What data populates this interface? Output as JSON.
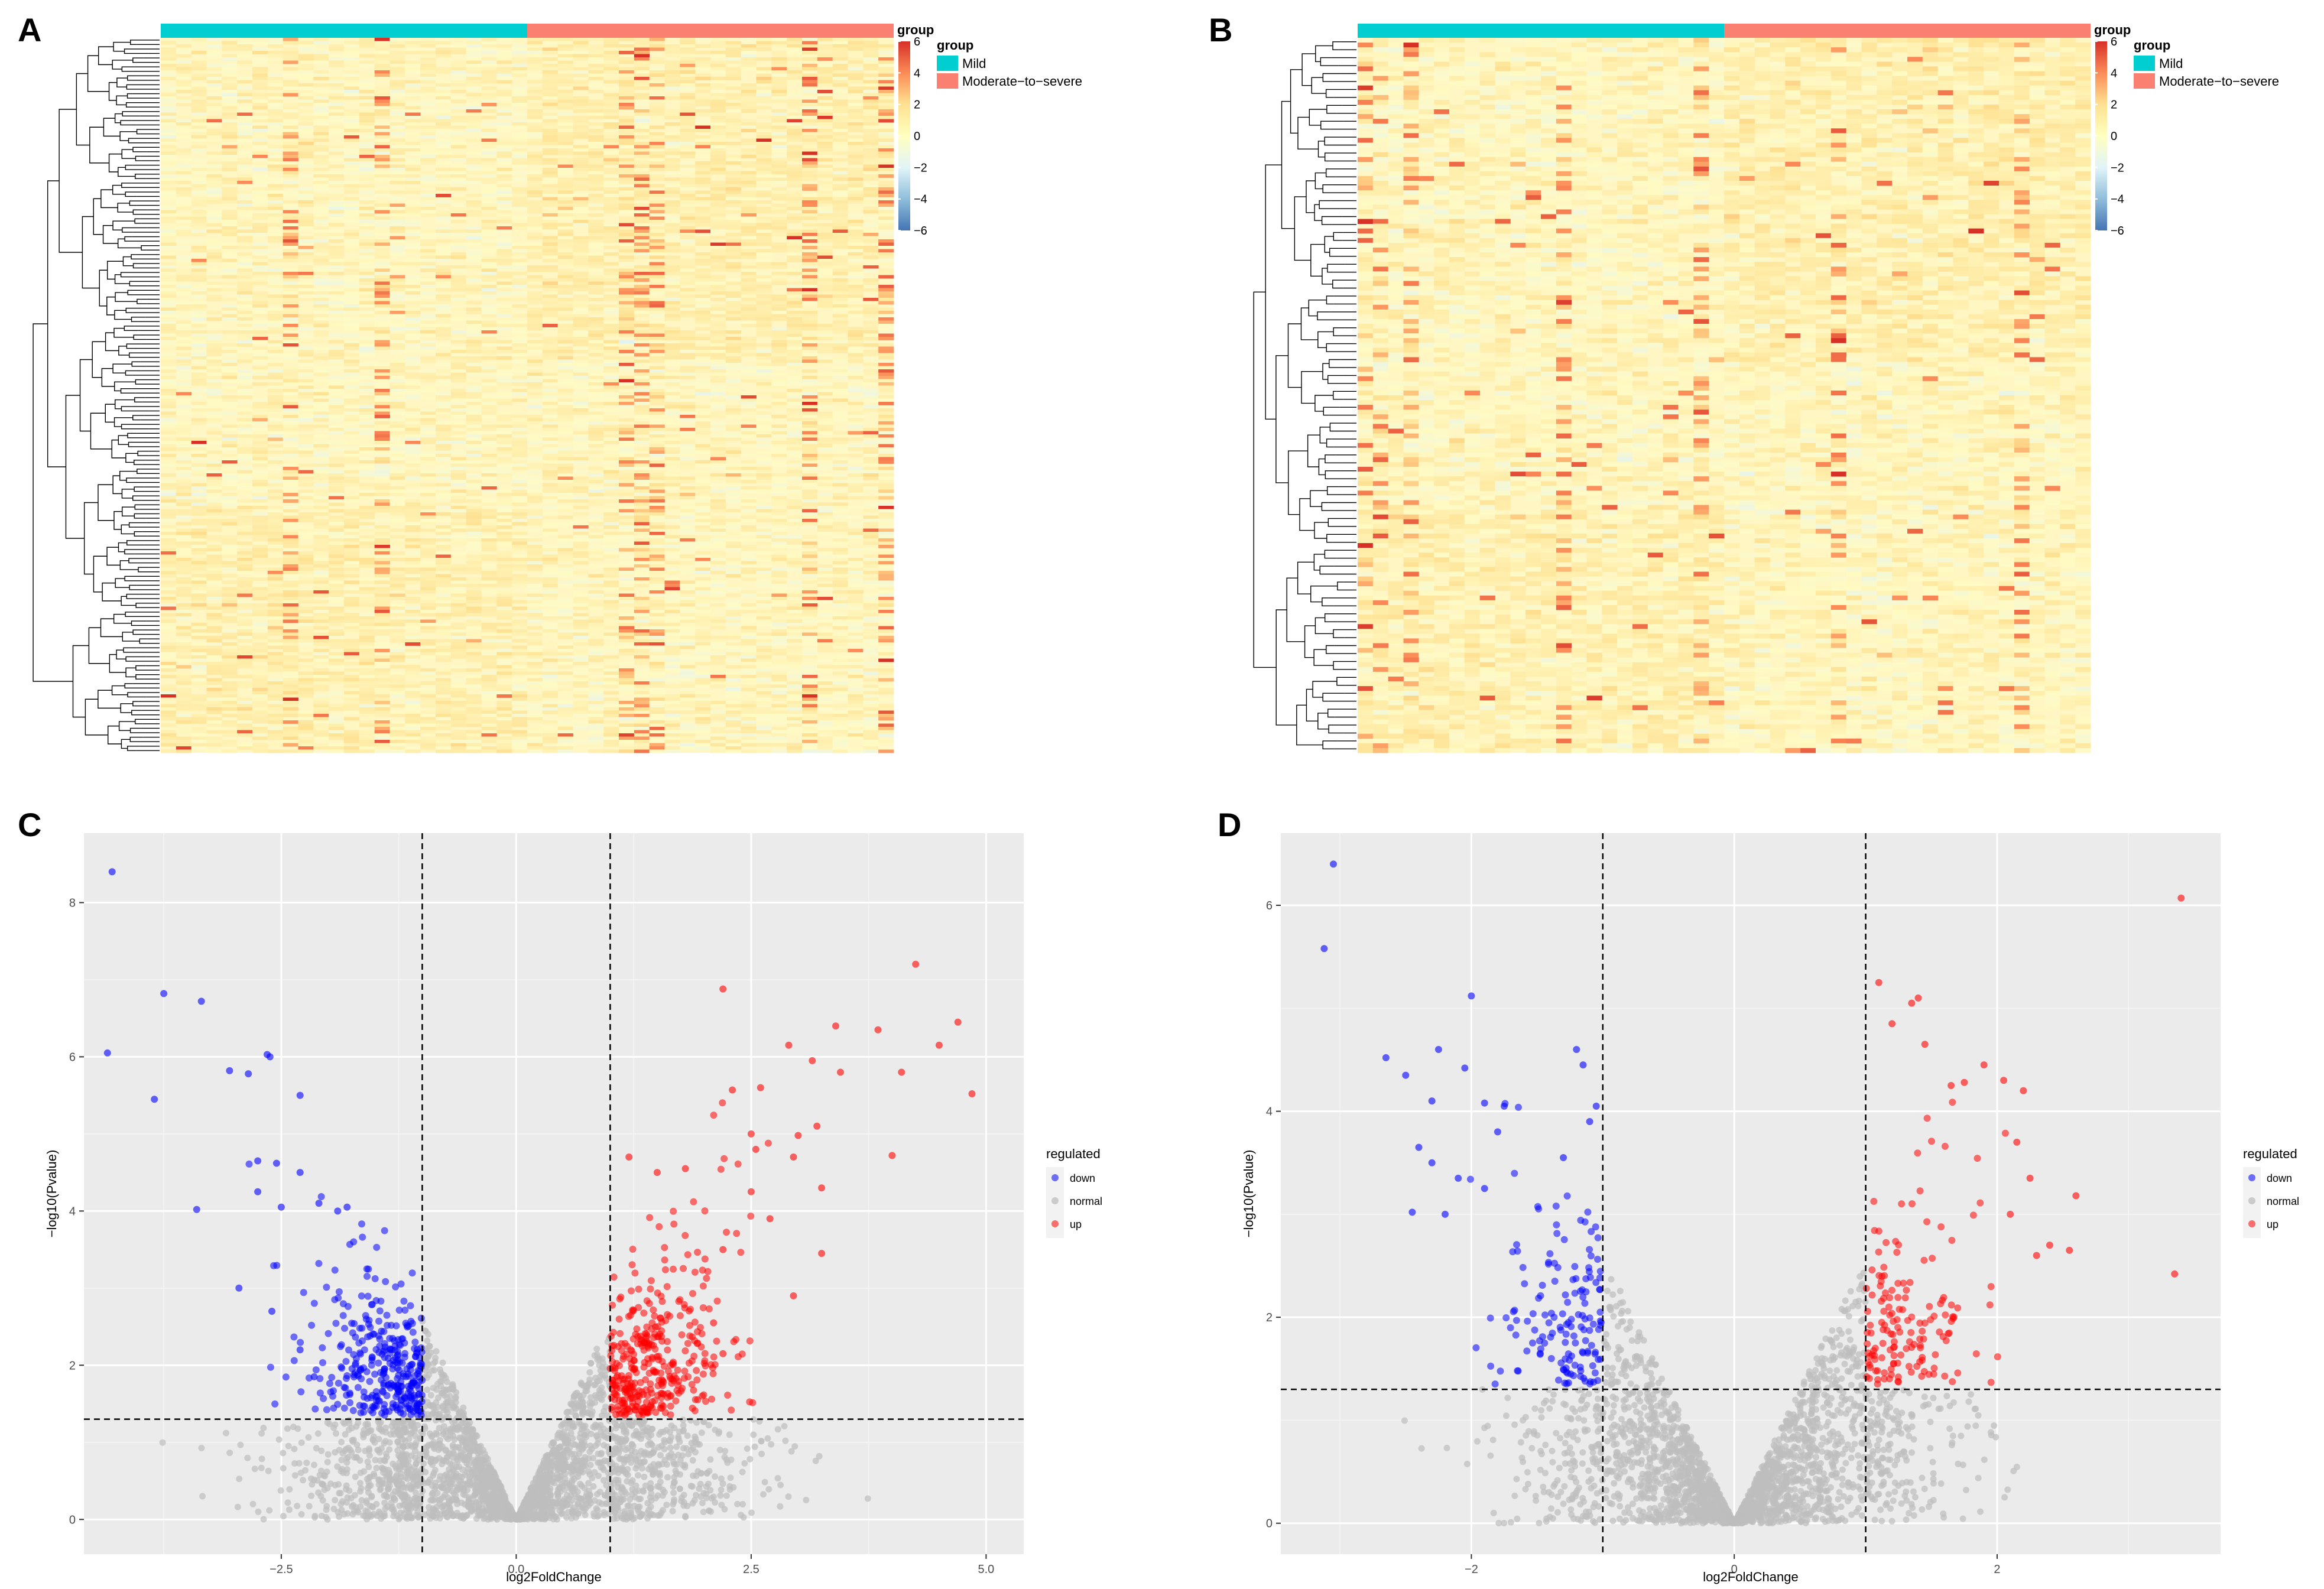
{
  "chart_data": [
    {
      "panel_label": "A",
      "type": "heatmap",
      "title": "",
      "groups": [
        {
          "name": "Mild",
          "color": "#00CED1"
        },
        {
          "name": "Moderate−to−severe",
          "color": "#FA8072"
        }
      ],
      "legend_title": "group",
      "colorbar": {
        "ticks": [
          "6",
          "4",
          "2",
          "0",
          "−2",
          "−4",
          "−6"
        ],
        "range": [
          -6,
          6
        ],
        "colors": [
          "#4575B4",
          "#91BFDB",
          "#E0F3F8",
          "#FFFFBF",
          "#FEE090",
          "#FC8D59",
          "#D73027"
        ]
      }
    },
    {
      "panel_label": "B",
      "type": "heatmap",
      "title": "",
      "groups": [
        {
          "name": "Mild",
          "color": "#00CED1"
        },
        {
          "name": "Moderate−to−severe",
          "color": "#FA8072"
        }
      ],
      "legend_title": "group",
      "colorbar": {
        "ticks": [
          "6",
          "4",
          "2",
          "0",
          "−2",
          "−4",
          "−6"
        ],
        "range": [
          -6,
          6
        ],
        "colors": [
          "#4575B4",
          "#91BFDB",
          "#E0F3F8",
          "#FFFFBF",
          "#FEE090",
          "#FC8D59",
          "#D73027"
        ]
      }
    },
    {
      "panel_label": "C",
      "type": "scatter",
      "title": "",
      "xlabel": "log2FoldChange",
      "ylabel": "−log10(Pvalue)",
      "xlim": [
        -4.6,
        5.4
      ],
      "ylim": [
        -0.45,
        8.9
      ],
      "xticks": [
        -2.5,
        0.0,
        2.5,
        5.0
      ],
      "xtick_labels": [
        "−2.5",
        "0.0",
        "2.5",
        "5.0"
      ],
      "yticks": [
        0,
        2,
        4,
        6,
        8
      ],
      "ytick_labels": [
        "0",
        "2",
        "4",
        "6",
        "8"
      ],
      "vlines": [
        -1,
        1
      ],
      "hline": 1.3,
      "legend_title": "regulated",
      "legend": [
        {
          "name": "down",
          "color": "#0000FF"
        },
        {
          "name": "normal",
          "color": "#BEBEBE"
        },
        {
          "name": "up",
          "color": "#FF0000"
        }
      ],
      "highlight_down": [
        [
          -4.3,
          8.4
        ],
        [
          -4.35,
          6.05
        ],
        [
          -3.75,
          6.82
        ],
        [
          -3.35,
          6.72
        ],
        [
          -3.85,
          5.45
        ],
        [
          -3.4,
          4.02
        ],
        [
          -3.05,
          5.82
        ],
        [
          -2.85,
          5.78
        ],
        [
          -2.65,
          6.03
        ],
        [
          -2.62,
          6.0
        ],
        [
          -2.3,
          5.5
        ],
        [
          -2.75,
          4.65
        ],
        [
          -2.55,
          4.62
        ],
        [
          -2.3,
          4.5
        ],
        [
          -2.75,
          4.25
        ],
        [
          -2.5,
          4.05
        ],
        [
          -2.1,
          4.1
        ],
        [
          -1.9,
          4.0
        ],
        [
          -1.8,
          4.05
        ],
        [
          -2.95,
          3.0
        ],
        [
          -2.6,
          2.7
        ],
        [
          -2.3,
          2.2
        ],
        [
          -2.15,
          1.85
        ]
      ],
      "highlight_up": [
        [
          4.25,
          7.2
        ],
        [
          2.2,
          6.88
        ],
        [
          4.7,
          6.45
        ],
        [
          3.4,
          6.4
        ],
        [
          3.85,
          6.35
        ],
        [
          4.5,
          6.15
        ],
        [
          2.9,
          6.15
        ],
        [
          3.15,
          5.95
        ],
        [
          3.45,
          5.8
        ],
        [
          4.1,
          5.8
        ],
        [
          4.85,
          5.52
        ],
        [
          2.6,
          5.6
        ],
        [
          2.3,
          5.57
        ],
        [
          3.2,
          5.1
        ],
        [
          3.0,
          4.98
        ],
        [
          2.5,
          5.0
        ],
        [
          2.55,
          4.8
        ],
        [
          2.95,
          4.7
        ],
        [
          4.0,
          4.72
        ],
        [
          3.25,
          4.3
        ],
        [
          2.5,
          4.25
        ],
        [
          2.7,
          3.9
        ],
        [
          3.25,
          3.45
        ],
        [
          2.2,
          3.5
        ],
        [
          2.95,
          2.9
        ],
        [
          2.1,
          2.55
        ],
        [
          1.5,
          4.5
        ],
        [
          1.8,
          4.55
        ],
        [
          1.2,
          4.7
        ],
        [
          2.2,
          2.15
        ]
      ]
    },
    {
      "panel_label": "D",
      "type": "scatter",
      "title": "",
      "xlabel": "log2FoldChange",
      "ylabel": "−log10(Pvalue)",
      "xlim": [
        -3.45,
        3.7
      ],
      "ylim": [
        -0.3,
        6.7
      ],
      "xticks": [
        -2,
        0,
        2
      ],
      "xtick_labels": [
        "−2",
        "0",
        "2"
      ],
      "yticks": [
        0,
        2,
        4,
        6
      ],
      "ytick_labels": [
        "0",
        "2",
        "4",
        "6"
      ],
      "vlines": [
        -1,
        1
      ],
      "hline": 1.3,
      "legend_title": "regulated",
      "legend": [
        {
          "name": "down",
          "color": "#0000FF"
        },
        {
          "name": "normal",
          "color": "#BEBEBE"
        },
        {
          "name": "up",
          "color": "#FF0000"
        }
      ],
      "highlight_down": [
        [
          -3.05,
          6.4
        ],
        [
          -3.12,
          5.58
        ],
        [
          -2.0,
          5.12
        ],
        [
          -2.65,
          4.52
        ],
        [
          -2.5,
          4.35
        ],
        [
          -2.25,
          4.6
        ],
        [
          -2.05,
          4.42
        ],
        [
          -1.9,
          4.08
        ],
        [
          -2.3,
          4.1
        ],
        [
          -1.75,
          4.05
        ],
        [
          -1.8,
          3.8
        ],
        [
          -2.4,
          3.65
        ],
        [
          -2.3,
          3.5
        ],
        [
          -2.1,
          3.35
        ],
        [
          -1.9,
          3.25
        ],
        [
          -2.2,
          3.0
        ],
        [
          -2.45,
          3.02
        ],
        [
          -1.2,
          4.6
        ],
        [
          -1.15,
          4.45
        ],
        [
          -1.05,
          4.05
        ],
        [
          -1.1,
          3.9
        ],
        [
          -1.3,
          3.55
        ]
      ],
      "highlight_up": [
        [
          3.4,
          6.07
        ],
        [
          1.1,
          5.25
        ],
        [
          1.35,
          5.05
        ],
        [
          1.4,
          5.1
        ],
        [
          1.2,
          4.85
        ],
        [
          1.45,
          4.65
        ],
        [
          1.9,
          4.45
        ],
        [
          2.05,
          4.3
        ],
        [
          2.2,
          4.2
        ],
        [
          1.65,
          4.25
        ],
        [
          1.75,
          4.28
        ],
        [
          2.15,
          3.7
        ],
        [
          2.25,
          3.35
        ],
        [
          2.6,
          3.18
        ],
        [
          2.1,
          3.0
        ],
        [
          2.4,
          2.7
        ],
        [
          2.55,
          2.65
        ],
        [
          3.35,
          2.42
        ],
        [
          2.3,
          2.6
        ]
      ]
    }
  ]
}
